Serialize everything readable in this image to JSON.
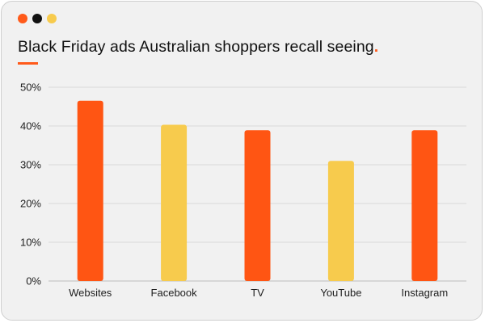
{
  "window": {
    "dots": [
      {
        "name": "window-dot-orange",
        "color": "#ff5a1a"
      },
      {
        "name": "window-dot-black",
        "color": "#111111"
      },
      {
        "name": "window-dot-yellow",
        "color": "#f7cb4d"
      }
    ]
  },
  "colors": {
    "accent": "#ff5a1a",
    "orange": "#ff5513",
    "yellow": "#f7cb4d",
    "gridline": "#d9d9d9"
  },
  "chart_data": {
    "type": "bar",
    "title": "Black Friday ads Australian shoppers recall seeing",
    "title_dot": ".",
    "xlabel": "",
    "ylabel": "",
    "categories": [
      "Websites",
      "Facebook",
      "TV",
      "YouTube",
      "Instagram"
    ],
    "values": [
      46.5,
      40.3,
      38.9,
      31.0,
      38.9
    ],
    "bar_colors": [
      "#ff5513",
      "#f7cb4d",
      "#ff5513",
      "#f7cb4d",
      "#ff5513"
    ],
    "ylim": [
      0,
      50
    ],
    "yticks": [
      0,
      10,
      20,
      30,
      40,
      50
    ],
    "ytick_labels": [
      "0%",
      "10%",
      "20%",
      "30%",
      "40%",
      "50%"
    ],
    "grid": true,
    "legend": "none"
  }
}
